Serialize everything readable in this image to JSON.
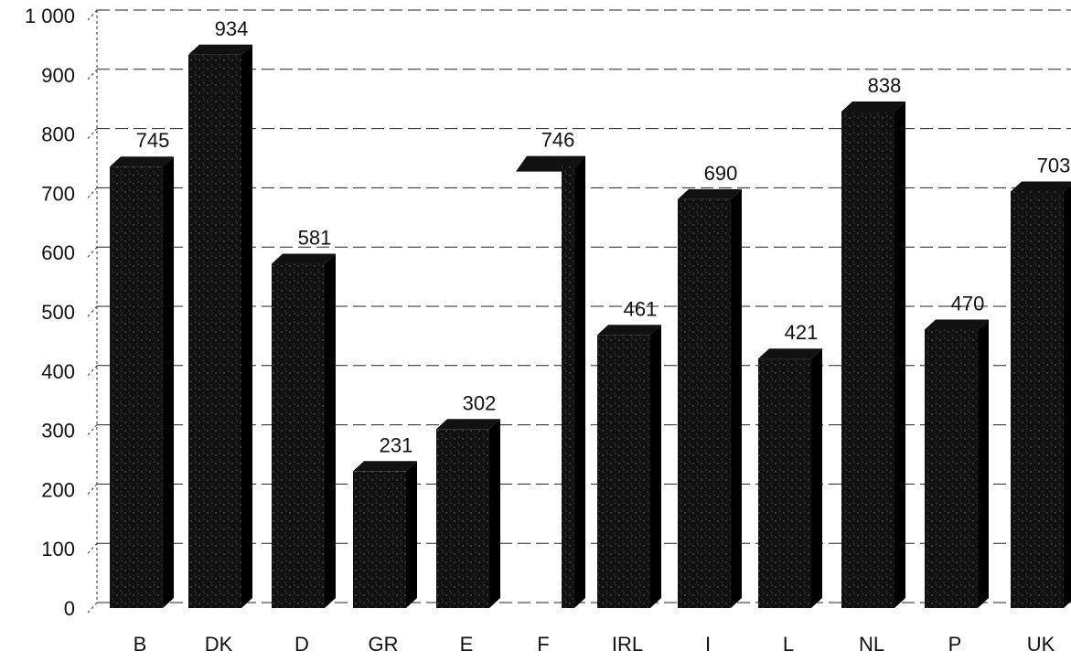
{
  "chart_data": {
    "type": "bar",
    "title": "",
    "xlabel": "",
    "ylabel": "",
    "categories": [
      "B",
      "DK",
      "D",
      "GR",
      "E",
      "F",
      "IRL",
      "I",
      "L",
      "NL",
      "P",
      "UK"
    ],
    "values": [
      745,
      934,
      581,
      231,
      302,
      746,
      461,
      690,
      421,
      838,
      470,
      703
    ],
    "yticks": [
      "0",
      "100",
      "200",
      "300",
      "400",
      "500",
      "600",
      "700",
      "800",
      "900",
      "1 000"
    ],
    "ylim": [
      0,
      1000
    ],
    "grid": true,
    "bar_style": "3d",
    "colors": {
      "bar": "#111111",
      "bar_side": "#000000",
      "grid": "#222222"
    }
  }
}
